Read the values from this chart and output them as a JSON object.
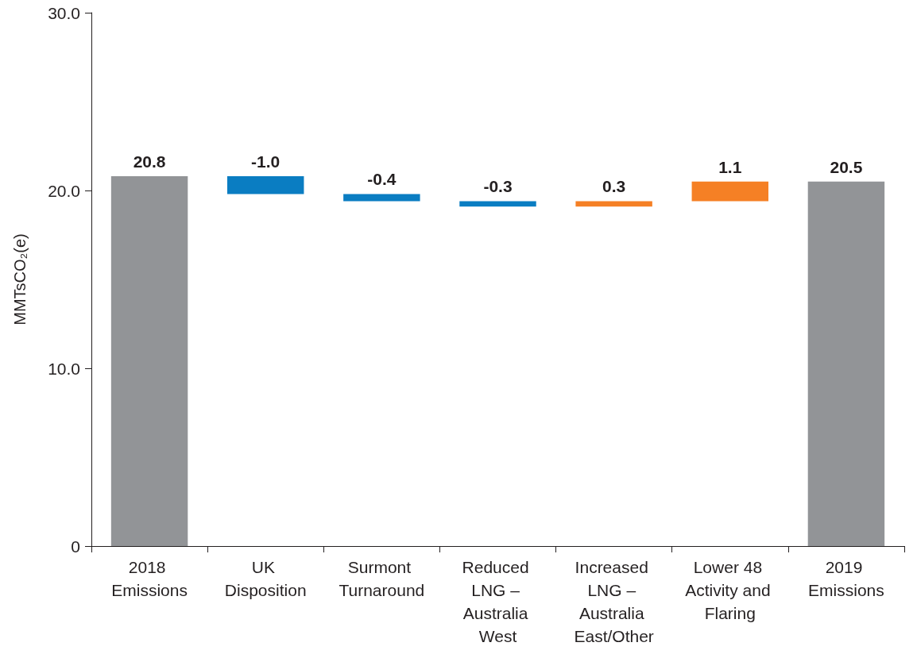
{
  "chart_data": {
    "type": "bar",
    "categories": [
      "2018 Emissions",
      "UK Disposition",
      "Surmont Turnaround",
      "Reduced LNG – Australia West",
      "Increased LNG – Australia East/Other",
      "Lower 48 Activity and Flaring",
      "2019 Emissions"
    ],
    "values": [
      20.8,
      -1.0,
      -0.4,
      -0.3,
      0.3,
      1.1,
      20.5
    ],
    "base": [
      0,
      20.8,
      19.8,
      19.4,
      19.1,
      19.4,
      0
    ],
    "colors": [
      "#929497",
      "#0a7dc2",
      "#0a7dc2",
      "#0a7dc2",
      "#f58025",
      "#f58025",
      "#929497"
    ],
    "value_labels": [
      "20.8",
      "-1.0",
      "-0.4",
      "-0.3",
      "0.3",
      "1.1",
      "20.5"
    ],
    "ylabel": "MMTsCO₂(e)",
    "ylim": [
      0,
      30
    ],
    "yticks": [
      0,
      {
        "value": 10,
        "label": "10.0"
      },
      {
        "value": 20,
        "label": "20.0"
      },
      {
        "value": 30,
        "label": "30.0"
      }
    ],
    "grid": false
  }
}
